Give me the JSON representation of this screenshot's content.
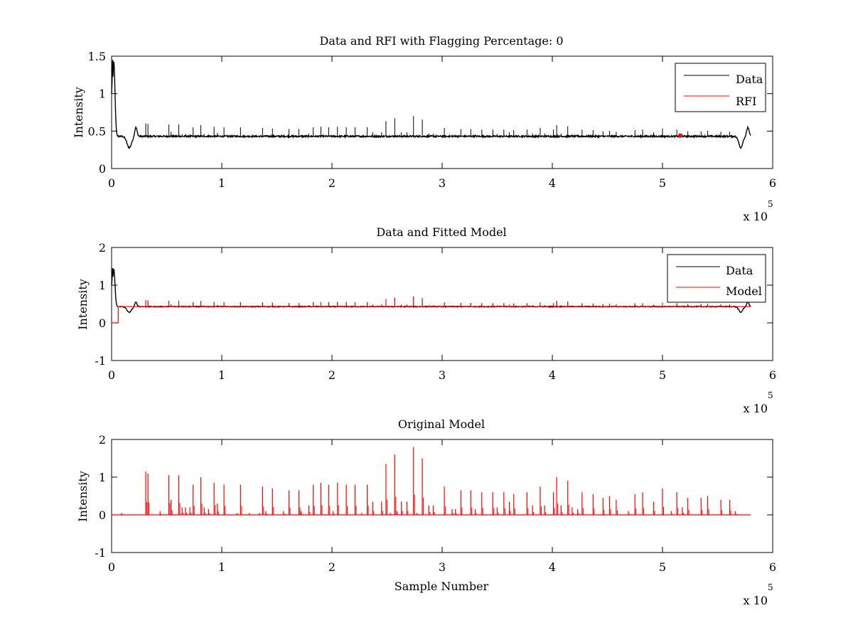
{
  "chart_data": [
    {
      "type": "line",
      "title": "Data and RFI with Flagging Percentage: 0",
      "xlabel": "",
      "ylabel": "Intensity",
      "xlim": [
        0,
        600000
      ],
      "ylim": [
        0,
        1.5
      ],
      "xticks": [
        0,
        1,
        2,
        3,
        4,
        5,
        6
      ],
      "yticks": [
        0,
        0.5,
        1,
        1.5
      ],
      "x_exponent": "x 10",
      "x_exponent_power": "5",
      "legend": {
        "position": "top-right",
        "entries": [
          "Data",
          "RFI"
        ]
      },
      "series": [
        {
          "name": "Data",
          "color": "#000000",
          "baseline": 0.43,
          "spike_scale": 0.15,
          "features": "initial peak ~1.4 near x=2000, dip to ~0.28 near x=16000, dip to ~0.28 near x=571000, rise to ~0.55 near x=577000"
        },
        {
          "name": "RFI",
          "color": "#ff0000",
          "points": [
            [
              516000,
              0.44
            ]
          ]
        }
      ]
    },
    {
      "type": "line",
      "title": "Data and Fitted Model",
      "xlabel": "",
      "ylabel": "Intensity",
      "xlim": [
        0,
        600000
      ],
      "ylim": [
        -1,
        2
      ],
      "xticks": [
        0,
        1,
        2,
        3,
        4,
        5,
        6
      ],
      "yticks": [
        -1,
        0,
        1,
        2
      ],
      "x_exponent": "x 10",
      "x_exponent_power": "5",
      "legend": {
        "position": "top-right",
        "entries": [
          "Data",
          "Model"
        ]
      },
      "series": [
        {
          "name": "Data",
          "color": "#000000",
          "baseline": 0.43
        },
        {
          "name": "Model",
          "color": "#ff0000",
          "baseline": 0.43,
          "starts_at_zero_until": 6000
        }
      ]
    },
    {
      "type": "line",
      "title": "Original Model",
      "xlabel": "Sample Number",
      "ylabel": "Intensity",
      "xlim": [
        0,
        600000
      ],
      "ylim": [
        -1,
        2
      ],
      "xticks": [
        0,
        1,
        2,
        3,
        4,
        5,
        6
      ],
      "yticks": [
        -1,
        0,
        1,
        2
      ],
      "x_exponent": "x 10",
      "x_exponent_power": "5",
      "series": [
        {
          "name": "Model",
          "color": "#ff0000",
          "baseline": 0,
          "spikes": [
            [
              9000,
              0.05
            ],
            [
              31000,
              1.15
            ],
            [
              33000,
              1.1
            ],
            [
              44000,
              0.1
            ],
            [
              52000,
              1.05
            ],
            [
              54000,
              0.4
            ],
            [
              61000,
              1.05
            ],
            [
              64000,
              0.2
            ],
            [
              67000,
              0.2
            ],
            [
              71000,
              0.2
            ],
            [
              74000,
              0.8
            ],
            [
              81000,
              1.0
            ],
            [
              84000,
              0.2
            ],
            [
              88000,
              0.15
            ],
            [
              93000,
              0.85
            ],
            [
              96000,
              0.3
            ],
            [
              102000,
              0.8
            ],
            [
              114000,
              0.05
            ],
            [
              117000,
              0.8
            ],
            [
              125000,
              0.05
            ],
            [
              134000,
              0.05
            ],
            [
              137000,
              0.75
            ],
            [
              140000,
              0.1
            ],
            [
              146000,
              0.7
            ],
            [
              156000,
              0.1
            ],
            [
              161000,
              0.65
            ],
            [
              170000,
              0.65
            ],
            [
              172000,
              0.1
            ],
            [
              179000,
              0.25
            ],
            [
              183000,
              0.8
            ],
            [
              190000,
              0.85
            ],
            [
              197000,
              0.8
            ],
            [
              201000,
              0.1
            ],
            [
              205000,
              0.85
            ],
            [
              213000,
              0.8
            ],
            [
              221000,
              0.8
            ],
            [
              227000,
              0.05
            ],
            [
              232000,
              0.8
            ],
            [
              237000,
              0.35
            ],
            [
              245000,
              0.35
            ],
            [
              249000,
              1.35
            ],
            [
              253000,
              0.05
            ],
            [
              257000,
              1.6
            ],
            [
              259000,
              0.1
            ],
            [
              263000,
              0.35
            ],
            [
              268000,
              0.35
            ],
            [
              274000,
              1.8
            ],
            [
              277000,
              0.05
            ],
            [
              282000,
              1.5
            ],
            [
              288000,
              0.25
            ],
            [
              292000,
              0.25
            ],
            [
              302000,
              0.75
            ],
            [
              309000,
              0.15
            ],
            [
              312000,
              0.15
            ],
            [
              317000,
              0.65
            ],
            [
              326000,
              0.65
            ],
            [
              330000,
              0.15
            ],
            [
              336000,
              0.6
            ],
            [
              346000,
              0.6
            ],
            [
              350000,
              0.2
            ],
            [
              356000,
              0.6
            ],
            [
              361000,
              0.35
            ],
            [
              365000,
              0.55
            ],
            [
              377000,
              0.6
            ],
            [
              382000,
              0.25
            ],
            [
              389000,
              0.75
            ],
            [
              393000,
              0.25
            ],
            [
              401000,
              0.6
            ],
            [
              404000,
              1.0
            ],
            [
              408000,
              0.25
            ],
            [
              414000,
              0.9
            ],
            [
              418000,
              0.2
            ],
            [
              423000,
              0.15
            ],
            [
              427000,
              0.6
            ],
            [
              437000,
              0.55
            ],
            [
              446000,
              0.45
            ],
            [
              452000,
              0.5
            ],
            [
              458000,
              0.4
            ],
            [
              469000,
              0.1
            ],
            [
              475000,
              0.55
            ],
            [
              482000,
              0.6
            ],
            [
              492000,
              0.35
            ],
            [
              500000,
              0.7
            ],
            [
              508000,
              0.1
            ],
            [
              513000,
              0.6
            ],
            [
              518000,
              0.2
            ],
            [
              523000,
              0.45
            ],
            [
              535000,
              0.45
            ],
            [
              541000,
              0.5
            ],
            [
              553000,
              0.4
            ],
            [
              561000,
              0.4
            ],
            [
              566000,
              0.1
            ]
          ]
        }
      ]
    }
  ]
}
